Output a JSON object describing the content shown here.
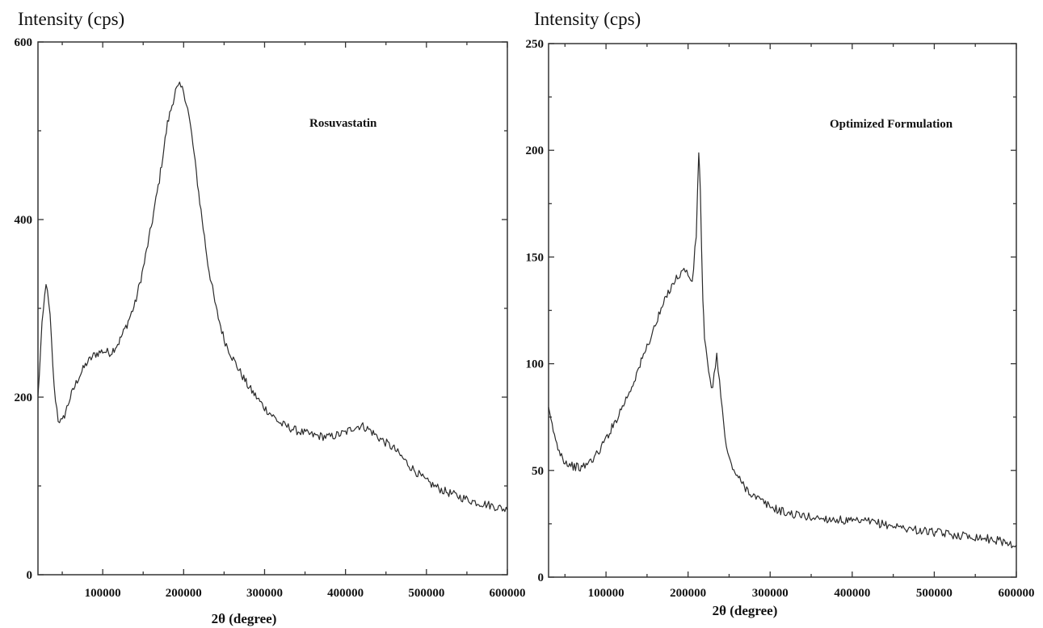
{
  "chart_data": [
    {
      "type": "line",
      "ylabel": "Intensity (cps)",
      "xlabel": "2θ (degree)",
      "annotation": "Rosuvastatin",
      "xlim": [
        20000,
        600000
      ],
      "ylim": [
        0,
        600
      ],
      "xticks": [
        100000,
        200000,
        300000,
        400000,
        500000,
        600000
      ],
      "yticks": [
        0,
        200,
        400,
        600
      ],
      "xtick_labels": [
        "100000",
        "200000",
        "300000",
        "400000",
        "500000",
        "600000"
      ],
      "ytick_labels": [
        "0",
        "200",
        "400",
        "600"
      ],
      "grid": false,
      "series": [
        {
          "x": [
            20000,
            25000,
            30000,
            35000,
            40000,
            45000,
            50000,
            60000,
            70000,
            80000,
            90000,
            100000,
            110000,
            120000,
            130000,
            140000,
            150000,
            160000,
            170000,
            180000,
            190000,
            195000,
            200000,
            205000,
            210000,
            220000,
            230000,
            240000,
            250000,
            260000,
            270000,
            280000,
            290000,
            300000,
            320000,
            340000,
            360000,
            380000,
            400000,
            410000,
            420000,
            430000,
            440000,
            460000,
            480000,
            500000,
            520000,
            540000,
            560000,
            580000,
            600000
          ],
          "y": [
            200,
            280,
            330,
            290,
            210,
            175,
            172,
            200,
            222,
            238,
            248,
            252,
            250,
            262,
            282,
            305,
            345,
            392,
            445,
            508,
            545,
            550,
            545,
            525,
            495,
            420,
            350,
            300,
            265,
            245,
            228,
            212,
            200,
            188,
            170,
            162,
            157,
            155,
            160,
            166,
            168,
            163,
            155,
            142,
            122,
            105,
            95,
            88,
            82,
            78,
            73
          ]
        }
      ]
    },
    {
      "type": "line",
      "ylabel": "Intensity (cps)",
      "xlabel": "2θ (degree)",
      "annotation": "Optimized Formulation",
      "xlim": [
        30000,
        600000
      ],
      "ylim": [
        0,
        250
      ],
      "xticks": [
        100000,
        200000,
        300000,
        400000,
        500000,
        600000
      ],
      "yticks": [
        0,
        50,
        100,
        150,
        200,
        250
      ],
      "xtick_labels": [
        "100000",
        "200000",
        "300000",
        "400000",
        "500000",
        "600000"
      ],
      "ytick_labels": [
        "0",
        "50",
        "100",
        "150",
        "200",
        "250"
      ],
      "grid": false,
      "series": [
        {
          "x": [
            30000,
            40000,
            50000,
            60000,
            70000,
            80000,
            90000,
            100000,
            110000,
            120000,
            130000,
            140000,
            150000,
            160000,
            170000,
            180000,
            190000,
            195000,
            200000,
            205000,
            210000,
            213000,
            215000,
            218000,
            220000,
            225000,
            230000,
            235000,
            240000,
            245000,
            250000,
            260000,
            270000,
            280000,
            300000,
            320000,
            350000,
            380000,
            400000,
            420000,
            450000,
            480000,
            500000,
            520000,
            550000,
            580000,
            600000
          ],
          "y": [
            78,
            62,
            54,
            52,
            51,
            54,
            58,
            65,
            72,
            80,
            88,
            98,
            108,
            118,
            128,
            137,
            142,
            144,
            142,
            138,
            160,
            200,
            180,
            130,
            112,
            95,
            88,
            105,
            85,
            65,
            55,
            47,
            42,
            38,
            33,
            30,
            28,
            27,
            26,
            26,
            24,
            22,
            21,
            20,
            19,
            17,
            15
          ]
        }
      ]
    }
  ]
}
